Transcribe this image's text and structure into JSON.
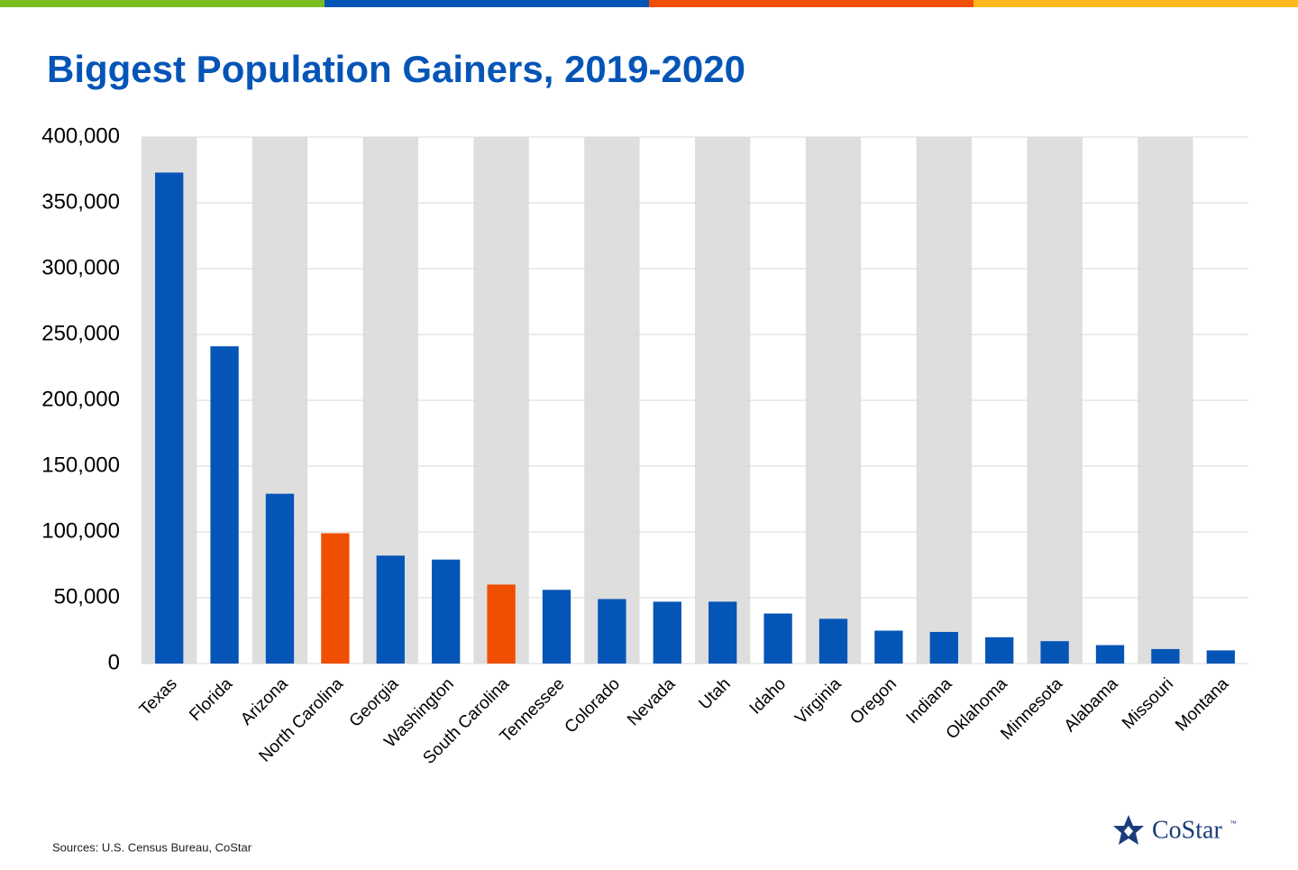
{
  "chart_data": {
    "type": "bar",
    "title": "Biggest Population Gainers, 2019-2020",
    "categories": [
      "Texas",
      "Florida",
      "Arizona",
      "North Carolina",
      "Georgia",
      "Washington",
      "South Carolina",
      "Tennessee",
      "Colorado",
      "Nevada",
      "Utah",
      "Idaho",
      "Virginia",
      "Oregon",
      "Indiana",
      "Oklahoma",
      "Minnesota",
      "Alabama",
      "Missouri",
      "Montana"
    ],
    "values": [
      373000,
      241000,
      129000,
      99000,
      82000,
      79000,
      60000,
      56000,
      49000,
      47000,
      47000,
      38000,
      34000,
      25000,
      24000,
      20000,
      17000,
      14000,
      11000,
      10000
    ],
    "colors": [
      "#0555b7",
      "#0555b7",
      "#0555b7",
      "#f04e00",
      "#0555b7",
      "#0555b7",
      "#f04e00",
      "#0555b7",
      "#0555b7",
      "#0555b7",
      "#0555b7",
      "#0555b7",
      "#0555b7",
      "#0555b7",
      "#0555b7",
      "#0555b7",
      "#0555b7",
      "#0555b7",
      "#0555b7",
      "#0555b7"
    ],
    "ylim": [
      0,
      400000
    ],
    "yticks": [
      0,
      {
        "value": 50000,
        "label": "50,000"
      },
      {
        "value": 100000,
        "label": "100,000"
      },
      {
        "value": 150000,
        "label": "150,000"
      },
      {
        "value": 200000,
        "label": "200,000"
      },
      {
        "value": 250000,
        "label": "250,000"
      },
      {
        "value": 300000,
        "label": "300,000"
      },
      {
        "value": 350000,
        "label": "350,000"
      },
      {
        "value": 400000,
        "label": "400,000"
      }
    ],
    "grid": true,
    "source": "Sources: U.S. Census Bureau, CoStar"
  },
  "logo": {
    "text": "CoStar",
    "mark": "™"
  }
}
